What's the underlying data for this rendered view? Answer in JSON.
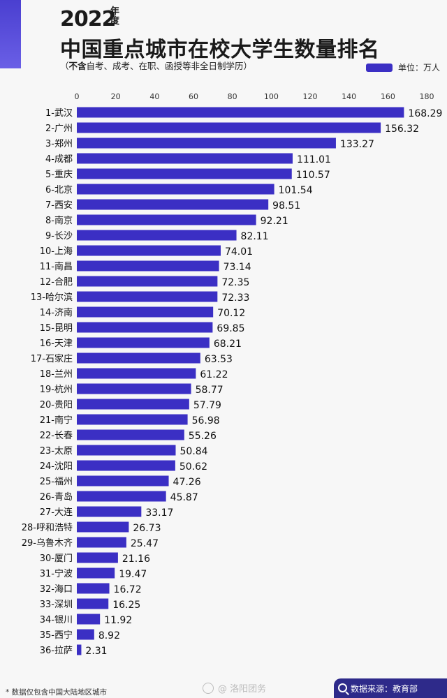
{
  "title_year": "2022",
  "title_year_suffix": "年度",
  "title": "中国重点城市在校大学生数量排名",
  "subtitle_open": "（",
  "subtitle_bold": "不含",
  "subtitle_rest": "自考、成考、在职、函授等非全日制学历）",
  "legend_label": "单位：万人",
  "footnote": "* 数据仅包含中国大陆地区城市",
  "watermark": "@ 洛阳团务",
  "source": "数据来源：教育部",
  "colors": {
    "bar": "#3b2fc4",
    "accent": "#4a3fd0"
  },
  "chart_data": {
    "type": "bar",
    "orientation": "horizontal",
    "xlim": [
      0,
      180
    ],
    "xticks": [
      0,
      20,
      40,
      60,
      80,
      100,
      120,
      140,
      160,
      180
    ],
    "grid": false,
    "categories": [
      "1-武汉",
      "2-广州",
      "3-郑州",
      "4-成都",
      "5-重庆",
      "6-北京",
      "7-西安",
      "8-南京",
      "9-长沙",
      "10-上海",
      "11-南昌",
      "12-合肥",
      "13-哈尔滨",
      "14-济南",
      "15-昆明",
      "16-天津",
      "17-石家庄",
      "18-兰州",
      "19-杭州",
      "20-贵阳",
      "21-南宁",
      "22-长春",
      "23-太原",
      "24-沈阳",
      "25-福州",
      "26-青岛",
      "27-大连",
      "28-呼和浩特",
      "29-乌鲁木齐",
      "30-厦门",
      "31-宁波",
      "32-海口",
      "33-深圳",
      "34-银川",
      "35-西宁",
      "36-拉萨"
    ],
    "value_labels": [
      "168.29",
      "156.32",
      "133.27",
      "111.01",
      "110.57",
      "101.54",
      "98.51",
      "92.21",
      "82.11",
      "74.01",
      "73.14",
      "72.35",
      "72.33",
      "70.12",
      "69.85",
      "68.21",
      "63.53",
      "61.22",
      "58.77",
      "57.79",
      "56.98",
      "55.26",
      "50.84",
      "50.62",
      "47.26",
      "45.87",
      "33.17",
      "26.73",
      "25.47",
      "21.16",
      "19.47",
      "16.72",
      "16.25",
      "11.92",
      "8.92",
      "2.31"
    ],
    "values": [
      168.29,
      156.32,
      133.27,
      111.01,
      110.57,
      101.54,
      98.51,
      92.21,
      82.11,
      74.01,
      73.14,
      72.35,
      72.33,
      70.12,
      69.85,
      68.21,
      63.53,
      61.22,
      58.77,
      57.79,
      56.98,
      55.26,
      50.84,
      50.62,
      47.26,
      45.87,
      33.17,
      26.73,
      25.47,
      21.16,
      19.47,
      16.72,
      16.25,
      11.92,
      8.92,
      2.31
    ]
  }
}
